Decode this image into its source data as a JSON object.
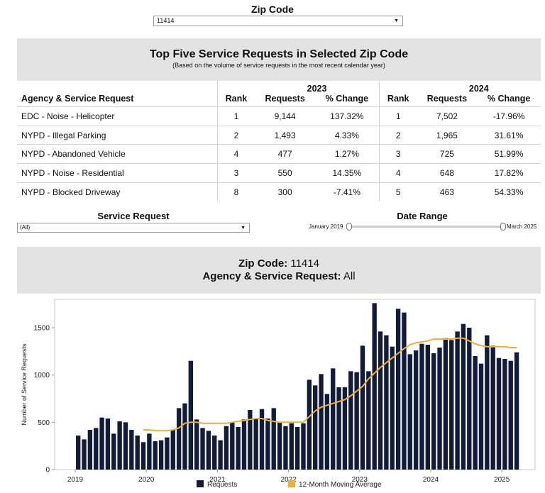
{
  "zip_filter": {
    "label": "Zip Code",
    "value": "11414"
  },
  "top_table": {
    "title": "Top Five Service Requests in Selected Zip Code",
    "subtitle": "(Based on the volume of service requests in the most recent calendar year)",
    "year_2023": "2023",
    "year_2024": "2024",
    "col_agency": "Agency & Service Request",
    "col_rank": "Rank",
    "col_requests": "Requests",
    "col_change": "% Change",
    "rows": [
      {
        "name": "EDC - Noise - Helicopter",
        "r23": "1",
        "q23": "9,144",
        "c23": "137.32%",
        "r24": "1",
        "q24": "7,502",
        "c24": "-17.96%"
      },
      {
        "name": "NYPD - Illegal Parking",
        "r23": "2",
        "q23": "1,493",
        "c23": "4.33%",
        "r24": "2",
        "q24": "1,965",
        "c24": "31.61%"
      },
      {
        "name": "NYPD - Abandoned Vehicle",
        "r23": "4",
        "q23": "477",
        "c23": "1.27%",
        "r24": "3",
        "q24": "725",
        "c24": "51.99%"
      },
      {
        "name": "NYPD - Noise - Residential",
        "r23": "3",
        "q23": "550",
        "c23": "14.35%",
        "r24": "4",
        "q24": "648",
        "c24": "17.82%"
      },
      {
        "name": "NYPD - Blocked Driveway",
        "r23": "8",
        "q23": "300",
        "c23": "-7.41%",
        "r24": "5",
        "q24": "463",
        "c24": "54.33%"
      }
    ]
  },
  "service_filter": {
    "label": "Service Request",
    "value": "(All)"
  },
  "date_range": {
    "label": "Date Range",
    "start": "January 2019",
    "end": "March 2025"
  },
  "chart_header": {
    "zip_key": "Zip Code:",
    "zip_value": "11414",
    "agency_key": "Agency & Service Request:",
    "agency_value": "All"
  },
  "chart_data": {
    "type": "bar",
    "ylabel": "Number of Service Requests",
    "ylim": [
      0,
      1800
    ],
    "yticks": [
      0,
      500,
      1000,
      1500
    ],
    "xticks": [
      "2019",
      "2020",
      "2021",
      "2022",
      "2023",
      "2024",
      "2025"
    ],
    "grid": false,
    "legend_position": "bottom",
    "colors": {
      "requests": "#111b3b",
      "moving_average": "#f2ae2e"
    },
    "series": [
      {
        "name": "Requests",
        "type": "bar",
        "x": [
          "2019-01",
          "2019-02",
          "2019-03",
          "2019-04",
          "2019-05",
          "2019-06",
          "2019-07",
          "2019-08",
          "2019-09",
          "2019-10",
          "2019-11",
          "2019-12",
          "2020-01",
          "2020-02",
          "2020-03",
          "2020-04",
          "2020-05",
          "2020-06",
          "2020-07",
          "2020-08",
          "2020-09",
          "2020-10",
          "2020-11",
          "2020-12",
          "2021-01",
          "2021-02",
          "2021-03",
          "2021-04",
          "2021-05",
          "2021-06",
          "2021-07",
          "2021-08",
          "2021-09",
          "2021-10",
          "2021-11",
          "2021-12",
          "2022-01",
          "2022-02",
          "2022-03",
          "2022-04",
          "2022-05",
          "2022-06",
          "2022-07",
          "2022-08",
          "2022-09",
          "2022-10",
          "2022-11",
          "2022-12",
          "2023-01",
          "2023-02",
          "2023-03",
          "2023-04",
          "2023-05",
          "2023-06",
          "2023-07",
          "2023-08",
          "2023-09",
          "2023-10",
          "2023-11",
          "2023-12",
          "2024-01",
          "2024-02",
          "2024-03",
          "2024-04",
          "2024-05",
          "2024-06",
          "2024-07",
          "2024-08",
          "2024-09",
          "2024-10",
          "2024-11",
          "2024-12",
          "2025-01",
          "2025-02",
          "2025-03"
        ],
        "values": [
          360,
          320,
          420,
          440,
          550,
          540,
          380,
          510,
          500,
          420,
          360,
          290,
          380,
          300,
          310,
          340,
          420,
          650,
          700,
          1150,
          530,
          440,
          410,
          360,
          310,
          460,
          500,
          450,
          530,
          630,
          540,
          640,
          540,
          650,
          500,
          460,
          490,
          450,
          490,
          950,
          890,
          1010,
          800,
          1070,
          870,
          870,
          1040,
          1030,
          1310,
          1040,
          1760,
          1460,
          1420,
          1300,
          1700,
          1660,
          1220,
          1260,
          1330,
          1320,
          1230,
          1290,
          1390,
          1370,
          1460,
          1540,
          1500,
          1200,
          1120,
          1420,
          1310,
          1180,
          1170,
          1150,
          1240
        ]
      },
      {
        "name": "12-Month Moving Average",
        "type": "line",
        "x": [
          "2019-12",
          "2020-01",
          "2020-02",
          "2020-03",
          "2020-04",
          "2020-05",
          "2020-06",
          "2020-07",
          "2020-08",
          "2020-09",
          "2020-10",
          "2020-11",
          "2020-12",
          "2021-01",
          "2021-02",
          "2021-03",
          "2021-04",
          "2021-05",
          "2021-06",
          "2021-07",
          "2021-08",
          "2021-09",
          "2021-10",
          "2021-11",
          "2021-12",
          "2022-01",
          "2022-02",
          "2022-03",
          "2022-04",
          "2022-05",
          "2022-06",
          "2022-07",
          "2022-08",
          "2022-09",
          "2022-10",
          "2022-11",
          "2022-12",
          "2023-01",
          "2023-02",
          "2023-03",
          "2023-04",
          "2023-05",
          "2023-06",
          "2023-07",
          "2023-08",
          "2023-09",
          "2023-10",
          "2023-11",
          "2023-12",
          "2024-01",
          "2024-02",
          "2024-03",
          "2024-04",
          "2024-05",
          "2024-06",
          "2024-07",
          "2024-08",
          "2024-09",
          "2024-10",
          "2024-11",
          "2024-12",
          "2025-01",
          "2025-02",
          "2025-03"
        ],
        "values": [
          420,
          420,
          410,
          410,
          410,
          420,
          440,
          490,
          500,
          500,
          490,
          490,
          490,
          490,
          490,
          500,
          510,
          520,
          530,
          540,
          540,
          520,
          510,
          500,
          500,
          500,
          500,
          500,
          560,
          620,
          660,
          680,
          700,
          720,
          740,
          780,
          830,
          880,
          960,
          1020,
          1080,
          1130,
          1180,
          1230,
          1280,
          1320,
          1340,
          1350,
          1360,
          1380,
          1380,
          1380,
          1380,
          1390,
          1390,
          1360,
          1330,
          1310,
          1300,
          1300,
          1300,
          1300,
          1290,
          1290
        ]
      }
    ]
  }
}
